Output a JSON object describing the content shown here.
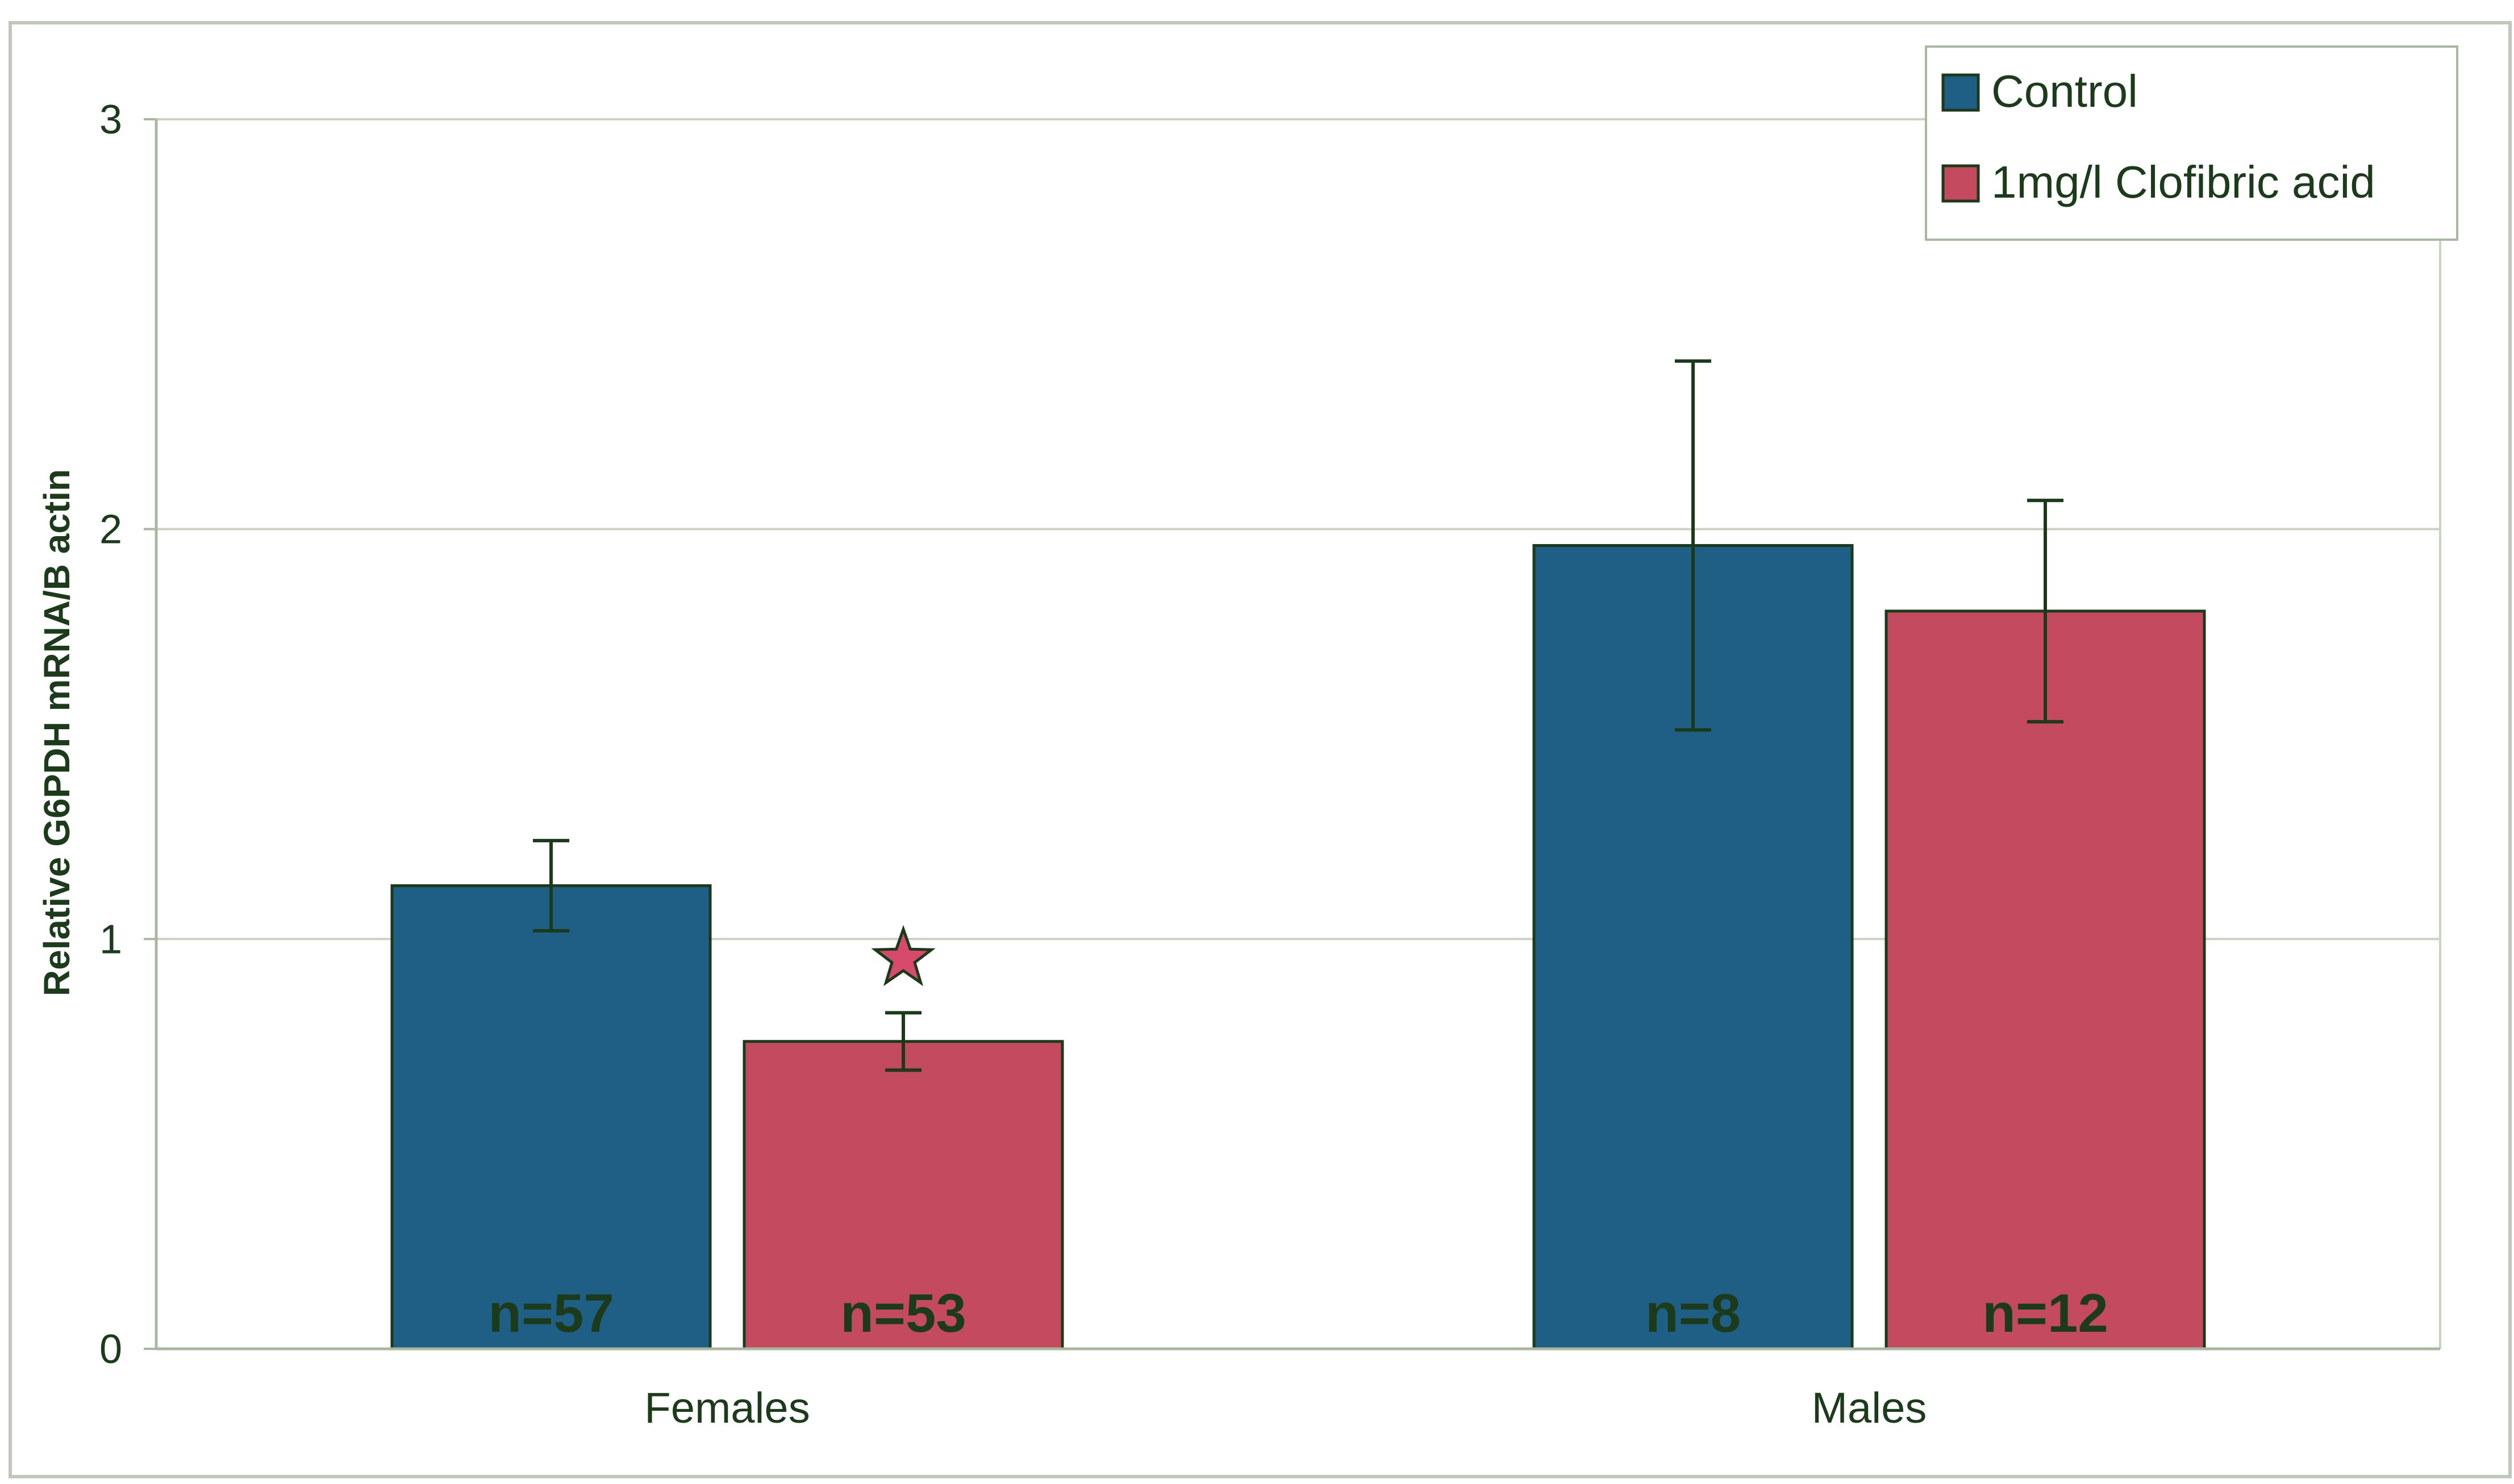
{
  "chart_data": {
    "type": "bar",
    "title": "",
    "xlabel": "",
    "ylabel": "Relative G6PDH mRNA/B actin",
    "ylim": [
      0,
      3
    ],
    "yticks": [
      "0",
      "1",
      "2",
      "3"
    ],
    "categories": [
      "Females",
      "Males"
    ],
    "series": [
      {
        "name": "Control",
        "color": "#1f5f85",
        "values": [
          1.13,
          1.96
        ],
        "errors": [
          0.11,
          0.45
        ],
        "n_labels": [
          "n=57",
          "n=8"
        ]
      },
      {
        "name": "1mg/l Clofibric acid",
        "color": "#c44b5f",
        "values": [
          0.75,
          1.8
        ],
        "errors": [
          0.07,
          0.27
        ],
        "n_labels": [
          "n=53",
          "n=12"
        ]
      }
    ],
    "significance_marker": {
      "category": "Females",
      "series": "1mg/l Clofibric acid",
      "symbol": "star"
    },
    "grid": true,
    "legend_position": "top-right",
    "colors": {
      "bar_outline": "#1a3a1a",
      "grid": "#c8d3c0",
      "axis": "#a8b8a0",
      "text": "#1b3b1b",
      "n_label": "#1b3b1b",
      "star_fill": "#d84a6b"
    }
  }
}
